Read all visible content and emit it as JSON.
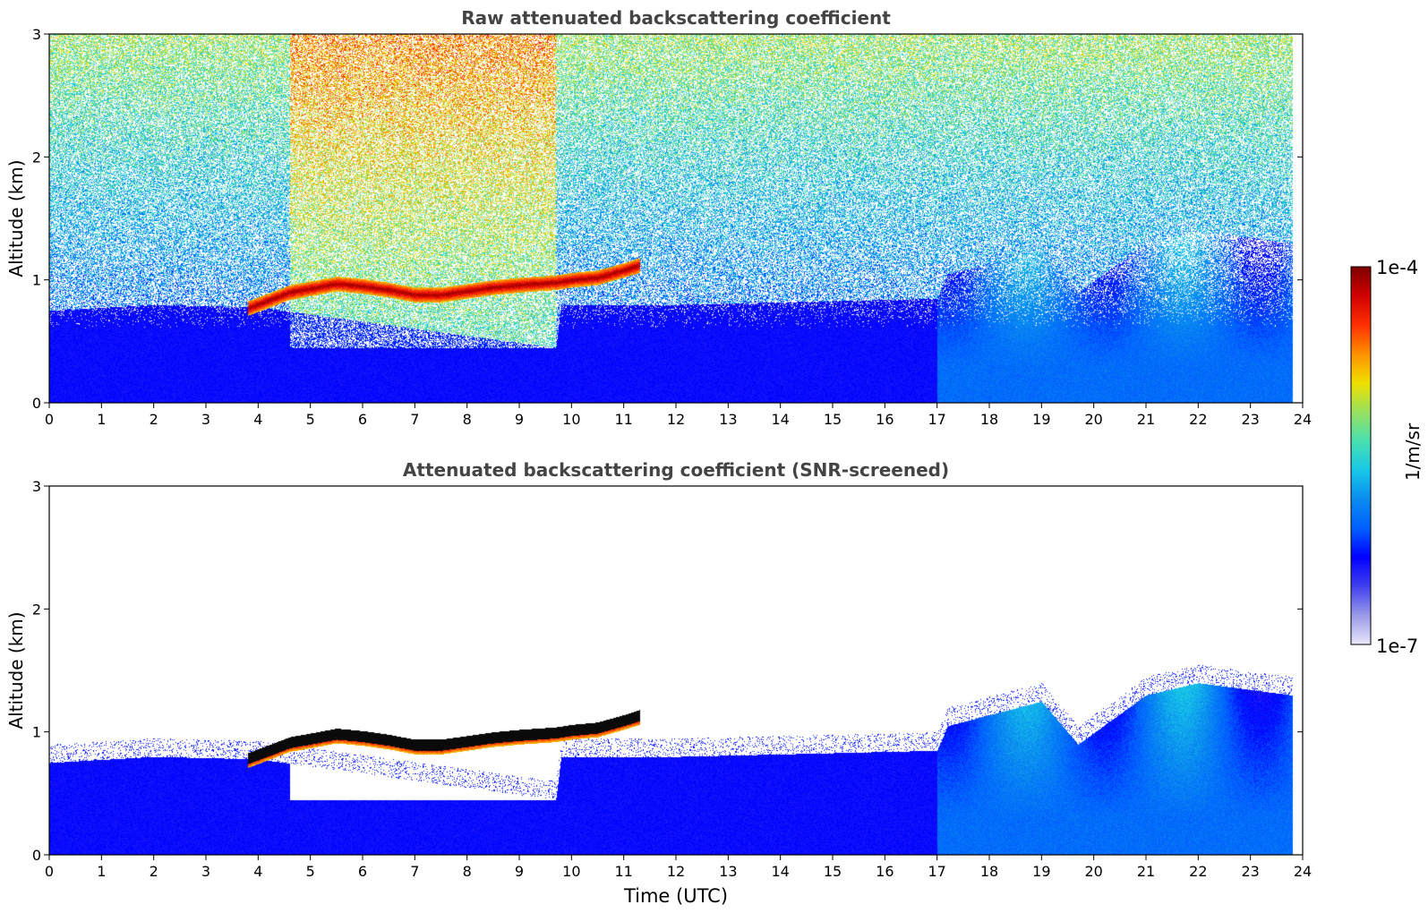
{
  "chart_data": [
    {
      "type": "heatmap",
      "title": "Raw attenuated backscattering coefficient",
      "xlabel": "",
      "ylabel": "Altitude (km)",
      "xlim": [
        0,
        24
      ],
      "ylim": [
        0,
        3
      ],
      "xticks": [
        "0",
        "1",
        "2",
        "3",
        "4",
        "5",
        "6",
        "7",
        "8",
        "9",
        "10",
        "11",
        "12",
        "13",
        "14",
        "15",
        "16",
        "17",
        "18",
        "19",
        "20",
        "21",
        "22",
        "23",
        "24"
      ],
      "yticks": [
        "0",
        "1",
        "2",
        "3"
      ],
      "data_end_hour": 23.8,
      "features": {
        "cloud_layer": [
          [
            3.8,
            0.77
          ],
          [
            4.3,
            0.85
          ],
          [
            4.6,
            0.9
          ],
          [
            5.0,
            0.93
          ],
          [
            5.5,
            0.97
          ],
          [
            6.0,
            0.95
          ],
          [
            6.5,
            0.92
          ],
          [
            7.0,
            0.88
          ],
          [
            7.5,
            0.88
          ],
          [
            8.0,
            0.91
          ],
          [
            8.5,
            0.94
          ],
          [
            9.0,
            0.96
          ],
          [
            9.7,
            0.98
          ],
          [
            10.0,
            1.0
          ],
          [
            10.5,
            1.02
          ],
          [
            11.0,
            1.08
          ],
          [
            11.3,
            1.12
          ]
        ],
        "boundary_layer_top_km": [
          [
            0,
            0.75
          ],
          [
            2,
            0.8
          ],
          [
            4,
            0.78
          ],
          [
            9.7,
            0.45
          ],
          [
            9.8,
            0.8
          ],
          [
            12,
            0.8
          ],
          [
            17,
            0.85
          ],
          [
            17.2,
            1.05
          ],
          [
            19,
            1.25
          ],
          [
            19.7,
            0.9
          ],
          [
            21,
            1.3
          ],
          [
            22,
            1.4
          ],
          [
            23.8,
            1.3
          ]
        ],
        "high_noise_window_hours": [
          4.6,
          9.7
        ]
      }
    },
    {
      "type": "heatmap",
      "title": "Attenuated backscattering coefficient (SNR-screened)",
      "xlabel": "Time (UTC)",
      "ylabel": "Altitude (km)",
      "xlim": [
        0,
        24
      ],
      "ylim": [
        0,
        3
      ],
      "xticks": [
        "0",
        "1",
        "2",
        "3",
        "4",
        "5",
        "6",
        "7",
        "8",
        "9",
        "10",
        "11",
        "12",
        "13",
        "14",
        "15",
        "16",
        "17",
        "18",
        "19",
        "20",
        "21",
        "22",
        "23",
        "24"
      ],
      "yticks": [
        "0",
        "1",
        "2",
        "3"
      ],
      "data_end_hour": 23.8
    }
  ],
  "colorbar": {
    "label": "1/m/sr",
    "max_label": "1e-4",
    "min_label": "1e-7",
    "stops": [
      "#e8e8fa",
      "#9a9ae8",
      "#4040f0",
      "#0000ff",
      "#0060ff",
      "#0a8cf0",
      "#18c8e8",
      "#48e0b0",
      "#98e060",
      "#f0e000",
      "#ff9000",
      "#ff3000",
      "#d00000",
      "#800000"
    ]
  }
}
